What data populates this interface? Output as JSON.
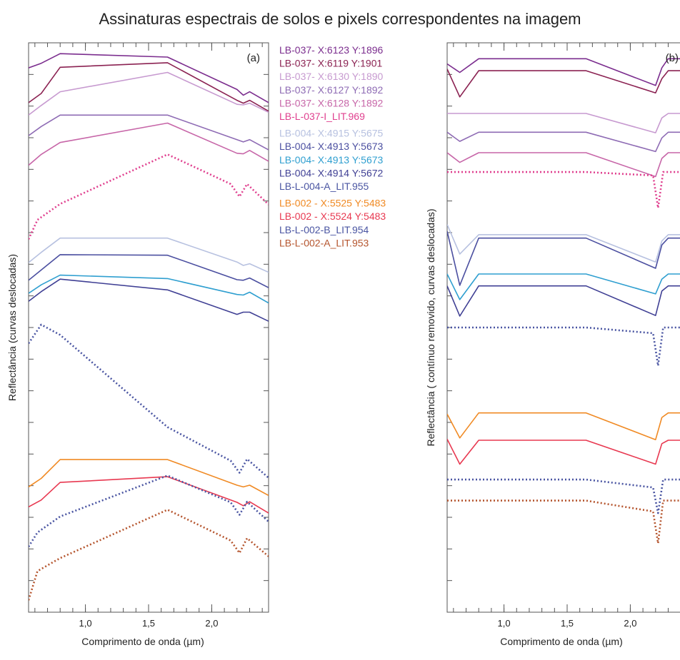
{
  "title": "Assinaturas espectrais de solos e pixels correspondentes na imagem",
  "chart_data": [
    {
      "type": "line",
      "panel": "(a)",
      "xlabel": "Comprimento de onda (µm)",
      "ylabel": "Reflectância (curvas deslocadas)",
      "xlim": [
        0.55,
        2.45
      ],
      "ylim": [
        0,
        1
      ],
      "xticks": [
        1.0,
        1.5,
        2.0
      ],
      "xtick_labels": [
        "1,0",
        "1,5",
        "2,0"
      ],
      "y_tick_labels_shown": false,
      "grid": false,
      "series": [
        {
          "name": "LB-037- X:6123 Y:1896",
          "color": "#7b2d8e",
          "dashed": false,
          "x": [
            0.55,
            0.65,
            0.8,
            1.65,
            2.2,
            2.25,
            2.3,
            2.45
          ],
          "y": [
            0.956,
            0.964,
            0.981,
            0.975,
            0.918,
            0.908,
            0.914,
            0.895
          ]
        },
        {
          "name": "LB-037- X:6119 Y:1901",
          "color": "#8b2252",
          "dashed": false,
          "x": [
            0.55,
            0.65,
            0.8,
            1.65,
            2.2,
            2.25,
            2.3,
            2.45
          ],
          "y": [
            0.895,
            0.911,
            0.957,
            0.965,
            0.899,
            0.894,
            0.899,
            0.88
          ]
        },
        {
          "name": "LB-037- X:6130 Y:1890",
          "color": "#c79ad0",
          "dashed": false,
          "x": [
            0.55,
            0.65,
            0.8,
            1.65,
            2.2,
            2.25,
            2.3,
            2.45
          ],
          "y": [
            0.873,
            0.89,
            0.914,
            0.948,
            0.892,
            0.891,
            0.894,
            0.878
          ]
        },
        {
          "name": "LB-037- X:6127 Y:1892",
          "color": "#8e6bb4",
          "dashed": false,
          "x": [
            0.55,
            0.65,
            0.8,
            1.65,
            2.2,
            2.25,
            2.3,
            2.45
          ],
          "y": [
            0.837,
            0.853,
            0.873,
            0.873,
            0.83,
            0.826,
            0.83,
            0.812
          ]
        },
        {
          "name": "LB-037- X:6128 Y:1892",
          "color": "#c766a8",
          "dashed": false,
          "x": [
            0.55,
            0.65,
            0.8,
            1.65,
            2.2,
            2.25,
            2.3,
            2.45
          ],
          "y": [
            0.785,
            0.804,
            0.825,
            0.859,
            0.806,
            0.805,
            0.811,
            0.792
          ]
        },
        {
          "name": "LB-L-037-I_LIT.969",
          "color": "#e0408f",
          "dashed": true,
          "x": [
            0.55,
            0.62,
            0.8,
            1.65,
            2.15,
            2.22,
            2.28,
            2.45
          ],
          "y": [
            0.655,
            0.689,
            0.717,
            0.804,
            0.752,
            0.73,
            0.752,
            0.716
          ]
        },
        {
          "name": "LB-004- X:4915 Y:5675",
          "color": "#b7c1e0",
          "dashed": false,
          "x": [
            0.55,
            0.65,
            0.8,
            1.65,
            2.2,
            2.25,
            2.3,
            2.45
          ],
          "y": [
            0.614,
            0.632,
            0.657,
            0.657,
            0.615,
            0.609,
            0.612,
            0.597
          ]
        },
        {
          "name": "LB-004- X:4913 Y:5673",
          "color": "#4b4fa0",
          "dashed": false,
          "x": [
            0.55,
            0.65,
            0.8,
            1.65,
            2.2,
            2.25,
            2.3,
            2.45
          ],
          "y": [
            0.583,
            0.601,
            0.628,
            0.627,
            0.584,
            0.583,
            0.587,
            0.57
          ]
        },
        {
          "name": "LB-004- X:4913 Y:5673",
          "color": "#2f9fd0",
          "dashed": false,
          "x": [
            0.55,
            0.65,
            0.8,
            1.65,
            2.2,
            2.25,
            2.3,
            2.45
          ],
          "y": [
            0.56,
            0.575,
            0.592,
            0.586,
            0.558,
            0.557,
            0.562,
            0.543
          ]
        },
        {
          "name": "LB-004- X:4914 Y:5672",
          "color": "#3f3f94",
          "dashed": false,
          "x": [
            0.55,
            0.65,
            0.8,
            1.65,
            2.2,
            2.25,
            2.3,
            2.45
          ],
          "y": [
            0.546,
            0.563,
            0.585,
            0.566,
            0.523,
            0.527,
            0.527,
            0.511
          ]
        },
        {
          "name": "LB-L-004-A_LIT.955",
          "color": "#4a55a2",
          "dashed": true,
          "x": [
            0.55,
            0.65,
            0.8,
            1.65,
            2.15,
            2.22,
            2.28,
            2.45
          ],
          "y": [
            0.472,
            0.505,
            0.487,
            0.325,
            0.266,
            0.245,
            0.269,
            0.236
          ]
        },
        {
          "name": "LB-002 - X:5525 Y:5483",
          "color": "#f08a24",
          "dashed": false,
          "x": [
            0.55,
            0.65,
            0.8,
            1.65,
            2.2,
            2.25,
            2.3,
            2.45
          ],
          "y": [
            0.22,
            0.235,
            0.268,
            0.268,
            0.223,
            0.22,
            0.223,
            0.205
          ]
        },
        {
          "name": "LB-002 - X:5524 Y:5483",
          "color": "#e83850",
          "dashed": false,
          "x": [
            0.55,
            0.65,
            0.8,
            1.65,
            2.2,
            2.25,
            2.3,
            2.45
          ],
          "y": [
            0.185,
            0.197,
            0.228,
            0.238,
            0.193,
            0.187,
            0.194,
            0.174
          ]
        },
        {
          "name": "LB-L-002-B_LIT.954",
          "color": "#4a55a2",
          "dashed": true,
          "x": [
            0.55,
            0.62,
            0.8,
            1.65,
            2.15,
            2.22,
            2.28,
            2.45
          ],
          "y": [
            0.115,
            0.14,
            0.168,
            0.24,
            0.193,
            0.171,
            0.194,
            0.159
          ]
        },
        {
          "name": "LB-L-002-A_LIT.953",
          "color": "#b5552e",
          "dashed": true,
          "x": [
            0.55,
            0.62,
            0.8,
            1.65,
            2.15,
            2.22,
            2.28,
            2.45
          ],
          "y": [
            0.021,
            0.072,
            0.095,
            0.18,
            0.126,
            0.104,
            0.13,
            0.098
          ]
        }
      ]
    },
    {
      "type": "line",
      "panel": "(b)",
      "xlabel": "Comprimento de onda (µm)",
      "ylabel": "Reflectância ( contínuo removido, curvas deslocadas)",
      "xlim": [
        0.55,
        2.45
      ],
      "ylim": [
        0,
        1
      ],
      "xticks": [
        1.0,
        1.5,
        2.0
      ],
      "xtick_labels": [
        "1,0",
        "1,5",
        "2,0"
      ],
      "y_tick_labels_shown": false,
      "grid": false,
      "series": [
        {
          "name": "LB-037- X:6123 Y:1896",
          "color": "#7b2d8e",
          "dashed": false,
          "x": [
            0.55,
            0.65,
            0.8,
            1.65,
            2.2,
            2.25,
            2.3,
            2.45
          ],
          "y": [
            0.963,
            0.948,
            0.972,
            0.972,
            0.925,
            0.956,
            0.972,
            0.972
          ]
        },
        {
          "name": "LB-037- X:6119 Y:1901",
          "color": "#8b2252",
          "dashed": false,
          "x": [
            0.55,
            0.65,
            0.8,
            1.65,
            2.2,
            2.25,
            2.3,
            2.45
          ],
          "y": [
            0.954,
            0.905,
            0.951,
            0.951,
            0.912,
            0.937,
            0.951,
            0.951
          ]
        },
        {
          "name": "LB-037- X:6130 Y:1890",
          "color": "#c79ad0",
          "dashed": false,
          "x": [
            0.55,
            0.65,
            0.8,
            1.65,
            2.2,
            2.25,
            2.3,
            2.45
          ],
          "y": [
            0.876,
            0.876,
            0.876,
            0.876,
            0.842,
            0.868,
            0.876,
            0.876
          ]
        },
        {
          "name": "LB-037- X:6127 Y:1892",
          "color": "#8e6bb4",
          "dashed": false,
          "x": [
            0.55,
            0.65,
            0.8,
            1.65,
            2.2,
            2.25,
            2.3,
            2.45
          ],
          "y": [
            0.843,
            0.827,
            0.843,
            0.843,
            0.809,
            0.833,
            0.843,
            0.843
          ]
        },
        {
          "name": "LB-037- X:6128 Y:1892",
          "color": "#c766a8",
          "dashed": false,
          "x": [
            0.55,
            0.65,
            0.8,
            1.65,
            2.2,
            2.25,
            2.3,
            2.45
          ],
          "y": [
            0.807,
            0.79,
            0.807,
            0.807,
            0.765,
            0.797,
            0.807,
            0.807
          ]
        },
        {
          "name": "LB-L-037-I_LIT.969",
          "color": "#e0408f",
          "dashed": true,
          "x": [
            0.55,
            0.65,
            0.8,
            1.65,
            2.18,
            2.22,
            2.26,
            2.45
          ],
          "y": [
            0.773,
            0.773,
            0.773,
            0.773,
            0.767,
            0.71,
            0.773,
            0.773
          ]
        },
        {
          "name": "LB-004- X:4915 Y:5675",
          "color": "#b7c1e0",
          "dashed": false,
          "x": [
            0.55,
            0.65,
            0.8,
            1.65,
            2.2,
            2.25,
            2.3,
            2.45
          ],
          "y": [
            0.681,
            0.629,
            0.663,
            0.663,
            0.615,
            0.652,
            0.663,
            0.663
          ]
        },
        {
          "name": "LB-004- X:4913 Y:5673",
          "color": "#4b4fa0",
          "dashed": false,
          "x": [
            0.55,
            0.65,
            0.8,
            1.65,
            2.2,
            2.25,
            2.3,
            2.45
          ],
          "y": [
            0.669,
            0.574,
            0.657,
            0.657,
            0.604,
            0.645,
            0.657,
            0.657
          ]
        },
        {
          "name": "LB-004- X:4913 Y:5673",
          "color": "#2f9fd0",
          "dashed": false,
          "x": [
            0.55,
            0.65,
            0.8,
            1.65,
            2.2,
            2.25,
            2.3,
            2.45
          ],
          "y": [
            0.594,
            0.549,
            0.594,
            0.594,
            0.559,
            0.585,
            0.594,
            0.594
          ]
        },
        {
          "name": "LB-004- X:4914 Y:5672",
          "color": "#3f3f94",
          "dashed": false,
          "x": [
            0.55,
            0.65,
            0.8,
            1.65,
            2.2,
            2.25,
            2.3,
            2.45
          ],
          "y": [
            0.573,
            0.52,
            0.573,
            0.573,
            0.521,
            0.564,
            0.573,
            0.573
          ]
        },
        {
          "name": "LB-L-004-A_LIT.955",
          "color": "#4a55a2",
          "dashed": true,
          "x": [
            0.55,
            0.65,
            0.8,
            1.65,
            2.18,
            2.22,
            2.26,
            2.45
          ],
          "y": [
            0.5,
            0.5,
            0.5,
            0.5,
            0.49,
            0.433,
            0.5,
            0.5
          ]
        },
        {
          "name": "LB-002 - X:5525 Y:5483",
          "color": "#f08a24",
          "dashed": false,
          "x": [
            0.55,
            0.65,
            0.8,
            1.65,
            2.2,
            2.25,
            2.3,
            2.45
          ],
          "y": [
            0.348,
            0.306,
            0.35,
            0.35,
            0.303,
            0.342,
            0.35,
            0.35
          ]
        },
        {
          "name": "LB-002 - X:5524 Y:5483",
          "color": "#e83850",
          "dashed": false,
          "x": [
            0.55,
            0.65,
            0.8,
            1.65,
            2.2,
            2.25,
            2.3,
            2.45
          ],
          "y": [
            0.304,
            0.26,
            0.302,
            0.302,
            0.26,
            0.296,
            0.302,
            0.302
          ]
        },
        {
          "name": "LB-L-002-B_LIT.954",
          "color": "#4a55a2",
          "dashed": true,
          "x": [
            0.55,
            0.65,
            0.8,
            1.65,
            2.18,
            2.22,
            2.26,
            2.45
          ],
          "y": [
            0.233,
            0.233,
            0.233,
            0.233,
            0.219,
            0.174,
            0.233,
            0.233
          ]
        },
        {
          "name": "LB-L-002-A_LIT.953",
          "color": "#b5552e",
          "dashed": true,
          "x": [
            0.55,
            0.65,
            0.8,
            1.65,
            2.18,
            2.22,
            2.26,
            2.45
          ],
          "y": [
            0.196,
            0.196,
            0.196,
            0.196,
            0.177,
            0.121,
            0.196,
            0.196
          ]
        }
      ]
    }
  ]
}
